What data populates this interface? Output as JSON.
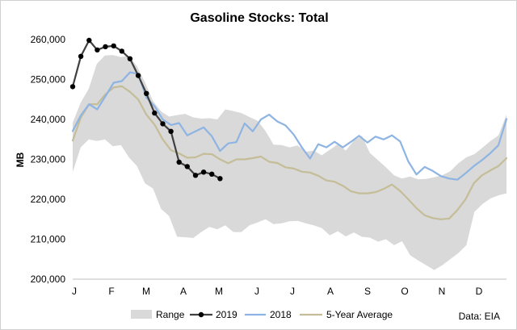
{
  "chart_data": {
    "type": "line",
    "title": "Gasoline Stocks: Total",
    "ylabel": "MB",
    "xlabel": "",
    "ylim": [
      200000,
      260000
    ],
    "y_ticks": [
      "200,000",
      "210,000",
      "220,000",
      "230,000",
      "240,000",
      "250,000",
      "260,000"
    ],
    "x_ticks": [
      "J",
      "F",
      "M",
      "A",
      "M",
      "J",
      "J",
      "A",
      "S",
      "O",
      "N",
      "D"
    ],
    "source": "Data: EIA",
    "legend_position": "bottom",
    "grid": false,
    "colors": {
      "range": "#d9d9d9",
      "y2019": "#404040",
      "y2018": "#8eb4e3",
      "avg": "#c4bd97"
    },
    "series": [
      {
        "name": "Range",
        "kind": "band",
        "lower": [
          226800,
          233000,
          235000,
          234600,
          235000,
          233300,
          233600,
          230500,
          228300,
          224000,
          222700,
          217600,
          215800,
          210600,
          210500,
          210300,
          211800,
          213100,
          212500,
          213500,
          211800,
          211800,
          213500,
          214200,
          215000,
          213800,
          214000,
          214500,
          214600,
          214000,
          213500,
          212800,
          211000,
          212000,
          210700,
          211700,
          210600,
          210400,
          209400,
          210000,
          208500,
          209500,
          206000,
          204700,
          203500,
          202300,
          203500,
          205000,
          206500,
          208500,
          216800,
          218800,
          220200,
          221000,
          221500
        ],
        "upper": [
          239200,
          244200,
          247700,
          253900,
          256000,
          256100,
          255600,
          255900,
          253300,
          249300,
          244600,
          242000,
          240700,
          241100,
          241400,
          240500,
          240200,
          240300,
          240000,
          242500,
          242100,
          241600,
          240600,
          239700,
          237100,
          233700,
          233600,
          233000,
          233500,
          231900,
          232200,
          231000,
          232400,
          233800,
          232200,
          234700,
          235900,
          231600,
          229800,
          228000,
          226000,
          225200,
          225700,
          225000,
          225100,
          225500,
          226000,
          227000,
          229000,
          230500,
          231300,
          232900,
          234600,
          236000,
          241200
        ]
      },
      {
        "name": "2019",
        "kind": "line-markers",
        "values": [
          248200,
          255800,
          259800,
          257400,
          258200,
          258400,
          257100,
          255200,
          251000,
          246500,
          241600,
          238900,
          237000,
          229300,
          228200,
          226000,
          226800,
          226300,
          225200
        ]
      },
      {
        "name": "2018",
        "kind": "line",
        "values": [
          237100,
          241000,
          243800,
          242500,
          245800,
          249200,
          249600,
          251800,
          251400,
          245500,
          243300,
          240000,
          238600,
          239100,
          236000,
          237000,
          238000,
          235800,
          232100,
          234000,
          234300,
          239000,
          237000,
          240000,
          241200,
          239500,
          238500,
          236200,
          233000,
          230200,
          233800,
          233000,
          234400,
          233000,
          234400,
          235900,
          234200,
          235700,
          235000,
          236000,
          234500,
          229500,
          226200,
          228100,
          227100,
          225800,
          225200,
          224900,
          226500,
          228300,
          229800,
          231500,
          233500,
          240100
        ]
      },
      {
        "name": "5-Year Average",
        "kind": "line",
        "values": [
          234700,
          240500,
          243800,
          243800,
          246300,
          248000,
          248300,
          246900,
          245000,
          241200,
          238700,
          235000,
          232300,
          231500,
          230400,
          230500,
          231400,
          231300,
          230000,
          229000,
          230000,
          230000,
          230300,
          230700,
          229400,
          229100,
          228000,
          227700,
          226900,
          226700,
          225900,
          224700,
          224400,
          223400,
          222000,
          221500,
          221500,
          221800,
          222600,
          223700,
          222100,
          220000,
          217800,
          216000,
          215300,
          215000,
          215200,
          217300,
          220000,
          224000,
          226000,
          227200,
          228300,
          230300
        ]
      }
    ]
  }
}
